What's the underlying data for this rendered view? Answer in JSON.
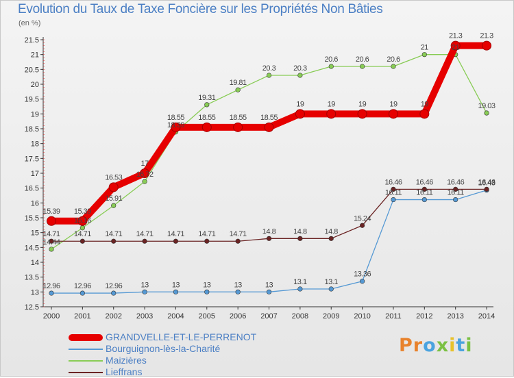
{
  "title": "Evolution du Taux de Taxe Foncière sur les Propriétés Non Bâties",
  "unit": "(en %)",
  "logo": "Proxiti",
  "logo_colors": [
    "#e8822c",
    "#e8822c",
    "#4aa3df",
    "#7bc043",
    "#e8c22c",
    "#4aa3df",
    "#7bc043"
  ],
  "chart_data": {
    "type": "line",
    "title": "Evolution du Taux de Taxe Foncière sur les Propriétés Non Bâties",
    "ylabel": "(en %)",
    "xlabel": "",
    "x": [
      "2000",
      "2001",
      "2002",
      "2003",
      "2004",
      "2005",
      "2006",
      "2007",
      "2008",
      "2009",
      "2010",
      "2011",
      "2012",
      "2013",
      "2014"
    ],
    "ylim": [
      12.5,
      21.5
    ],
    "yticks": [
      "12.5",
      "13",
      "13.5",
      "14",
      "14.5",
      "15",
      "15.5",
      "16",
      "16.5",
      "17",
      "17.5",
      "18",
      "18.5",
      "19",
      "19.5",
      "20",
      "20.5",
      "21",
      "21.5"
    ],
    "grid": false,
    "legend_position": "bottom-left",
    "series": [
      {
        "name": "GRANDVELLE-ET-LE-PERRENOT",
        "color": "#e60000",
        "highlight": true,
        "values": [
          15.39,
          15.39,
          16.53,
          17,
          18.55,
          18.55,
          18.55,
          18.55,
          19,
          19,
          19,
          19,
          19,
          21.3,
          21.3
        ],
        "labels": [
          "15.39",
          "15.39",
          "16.53",
          "17",
          "18.55",
          "18.55",
          "18.55",
          "18.55",
          "19",
          "19",
          "19",
          "19",
          "19",
          "21.3",
          "21.3"
        ]
      },
      {
        "name": "Bourguignon-lès-la-Charité",
        "color": "#5599d4",
        "values": [
          12.96,
          12.96,
          12.96,
          13,
          13,
          13,
          13,
          13,
          13.1,
          13.1,
          13.36,
          16.11,
          16.11,
          16.11,
          16.43
        ],
        "labels": [
          "12.96",
          "12.96",
          "12.96",
          "13",
          "13",
          "13",
          "13",
          "13",
          "13.1",
          "13.1",
          "13.36",
          "16.11",
          "16.11",
          "16.11",
          "16.43"
        ]
      },
      {
        "name": "Maizières",
        "color": "#88cc55",
        "values": [
          14.44,
          15.16,
          15.91,
          16.72,
          18.39,
          19.31,
          19.81,
          20.3,
          20.3,
          20.6,
          20.6,
          20.6,
          21,
          21,
          19.03
        ],
        "labels": [
          "14.44",
          "15.16",
          "15.91",
          "16.72",
          "18.39",
          "19.31",
          "19.81",
          "20.3",
          "20.3",
          "20.6",
          "20.6",
          "20.6",
          "21",
          "21",
          "19.03"
        ]
      },
      {
        "name": "Lieffrans",
        "color": "#6b2424",
        "values": [
          14.71,
          14.71,
          14.71,
          14.71,
          14.71,
          14.71,
          14.71,
          14.8,
          14.8,
          14.8,
          15.24,
          16.46,
          16.46,
          16.46,
          16.46
        ],
        "labels": [
          "14.71",
          "14.71",
          "14.71",
          "14.71",
          "14.71",
          "14.71",
          "14.71",
          "14.8",
          "14.8",
          "14.8",
          "15.24",
          "16.46",
          "16.46",
          "16.46",
          "16.46"
        ]
      }
    ]
  }
}
